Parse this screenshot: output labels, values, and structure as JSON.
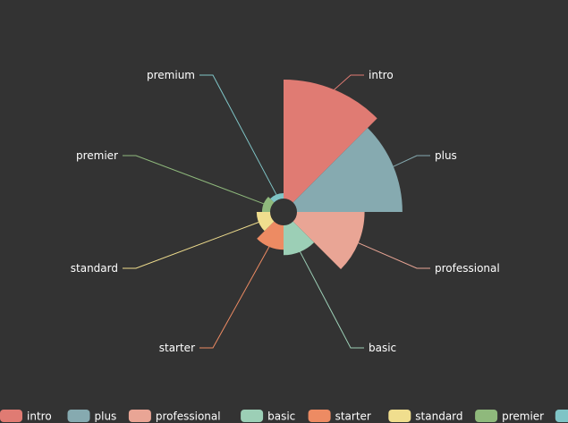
{
  "chart_data": {
    "type": "pie",
    "subtype": "rose",
    "title": "",
    "categories": [
      "intro",
      "plus",
      "professional",
      "basic",
      "starter",
      "standard",
      "premier",
      "premium"
    ],
    "values": [
      88,
      78,
      50,
      22,
      18,
      10,
      6,
      4
    ],
    "colors": [
      "#e07b73",
      "#86aab0",
      "#e9a595",
      "#9ccfb6",
      "#ed8b63",
      "#f0de8e",
      "#8fb97c",
      "#7fc4c6"
    ],
    "legend": {
      "position": "bottom",
      "items": [
        "intro",
        "plus",
        "professional",
        "basic",
        "starter",
        "standard",
        "premier",
        "premium"
      ]
    },
    "background": "#333333"
  }
}
